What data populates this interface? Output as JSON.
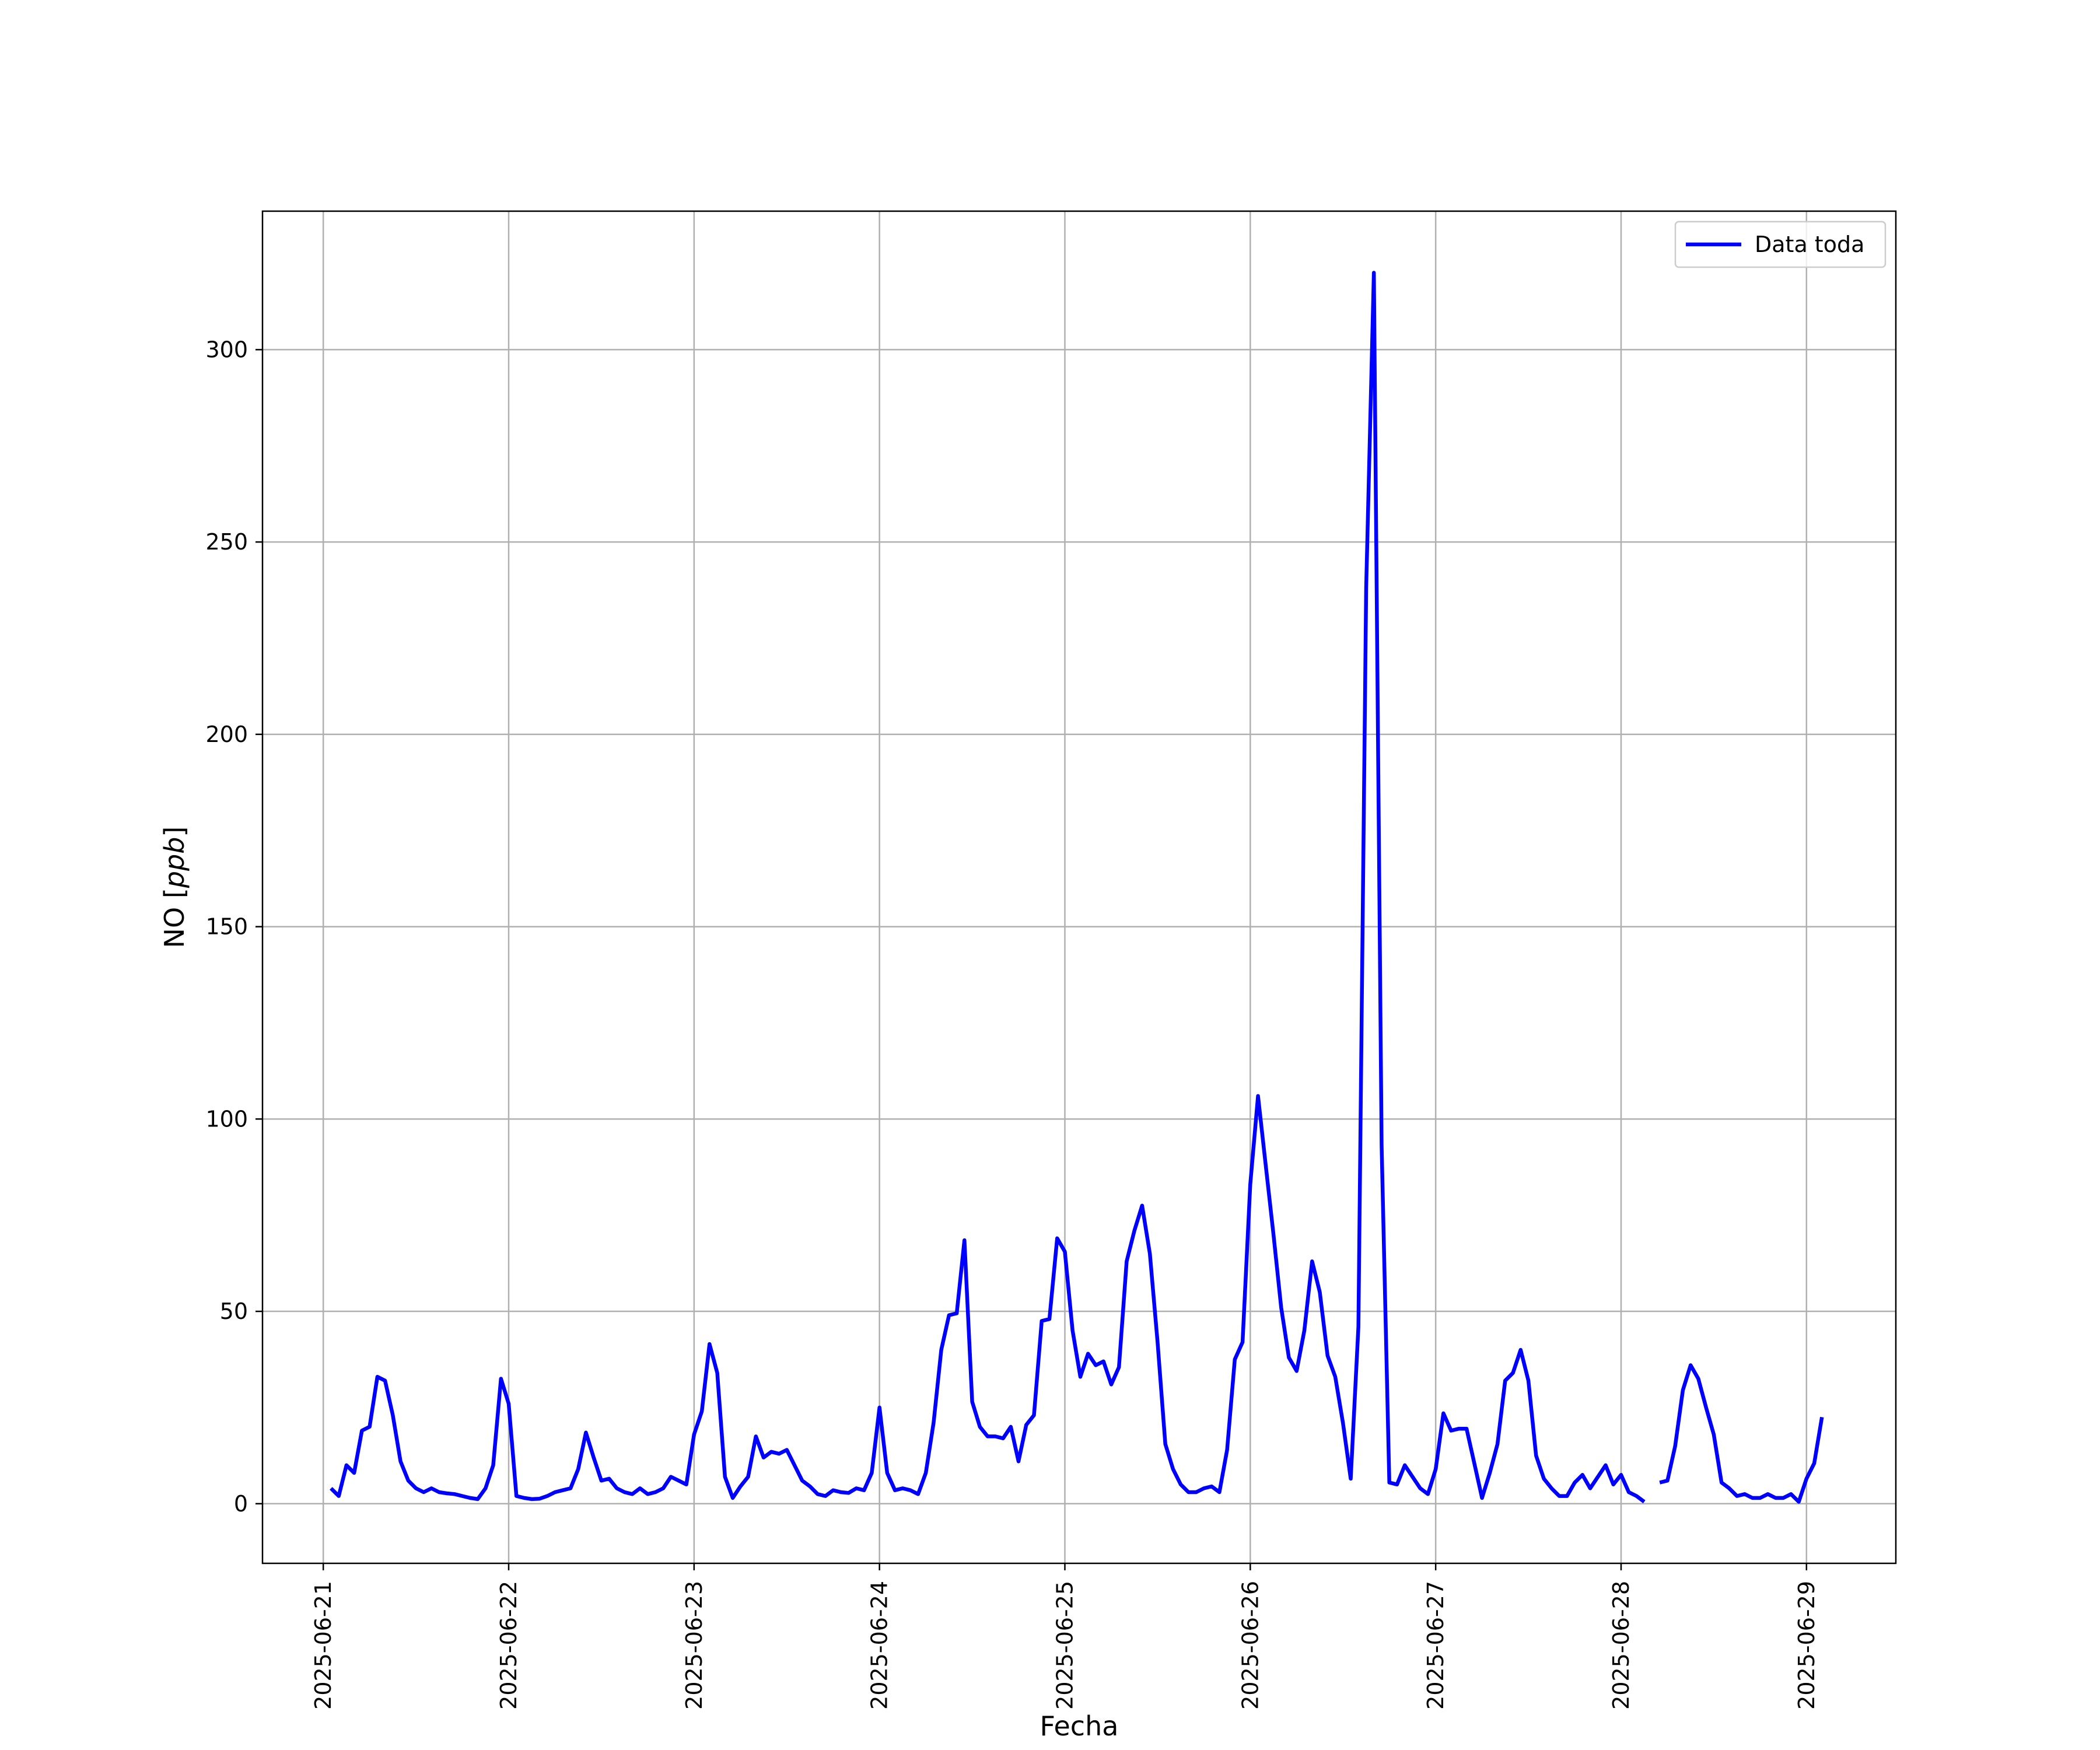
{
  "chart_data": {
    "type": "line",
    "xlabel": "Fecha",
    "ylabel_prefix": "NO [",
    "ylabel_unit": "ppb",
    "ylabel_suffix": "]",
    "x_ticks": [
      "2025-06-21",
      "2025-06-22",
      "2025-06-23",
      "2025-06-24",
      "2025-06-25",
      "2025-06-26",
      "2025-06-27",
      "2025-06-28",
      "2025-06-29"
    ],
    "y_ticks": [
      0,
      50,
      100,
      150,
      200,
      250,
      300
    ],
    "xlim": [
      "2025-06-20T16:08",
      "2025-06-29T11:34"
    ],
    "ylim": [
      -15.5,
      336
    ],
    "grid": true,
    "legend": {
      "position": "top-right",
      "entries": [
        "Data toda"
      ]
    },
    "series": [
      {
        "name": "Data toda",
        "color": "#0000ff",
        "x_start": "2025-06-21T01:00",
        "x_step_hours": 1,
        "values": [
          4,
          2,
          10,
          8,
          19,
          20,
          33,
          32,
          23,
          11,
          6,
          4,
          3,
          4,
          3,
          2.7,
          2.5,
          2,
          1.5,
          1.2,
          4,
          10,
          32.5,
          26,
          2,
          1.5,
          1.2,
          1.3,
          2,
          3,
          3.5,
          4,
          9,
          18.5,
          12,
          6,
          6.5,
          4,
          3,
          2.5,
          4,
          2.5,
          3,
          4,
          7,
          6,
          5,
          18,
          24,
          41.5,
          34,
          7,
          1.5,
          4.5,
          7,
          17.5,
          12,
          13.5,
          13,
          14,
          10,
          6,
          4.5,
          2.5,
          2,
          3.5,
          3,
          2.8,
          4,
          3.5,
          8,
          25,
          8,
          3.5,
          4,
          3.5,
          2.5,
          8,
          21,
          40,
          49,
          49.5,
          68.5,
          26.5,
          20,
          17.5,
          17.5,
          17,
          20,
          11,
          20.5,
          23,
          47.5,
          48,
          69,
          65.5,
          45,
          33,
          39,
          36,
          37,
          31,
          35.5,
          63,
          71,
          77.5,
          65,
          42,
          15.5,
          9,
          5,
          3,
          3,
          4,
          4.5,
          3,
          14,
          37.5,
          42,
          83,
          106,
          88,
          70,
          51,
          38,
          34.5,
          45,
          63,
          55,
          38.5,
          33,
          21,
          6.5,
          46,
          238,
          320,
          93,
          5.5,
          5,
          10,
          7,
          4,
          2.5,
          9,
          23.5,
          19,
          19.5,
          19.5,
          10.5,
          1.5,
          8,
          15.5,
          32,
          34,
          40,
          32,
          12.5,
          6.5,
          4,
          2,
          2,
          5.5,
          7.5,
          4,
          7,
          10,
          5,
          7.5,
          3,
          2,
          0.5,
          null,
          5.5,
          6,
          15,
          29.5,
          36,
          32.5,
          25,
          18,
          5.5,
          4,
          2,
          2.5,
          1.5,
          1.5,
          2.5,
          1.5,
          1.5,
          2.5,
          0.5,
          6.5,
          10.5,
          22.5
        ]
      }
    ]
  }
}
